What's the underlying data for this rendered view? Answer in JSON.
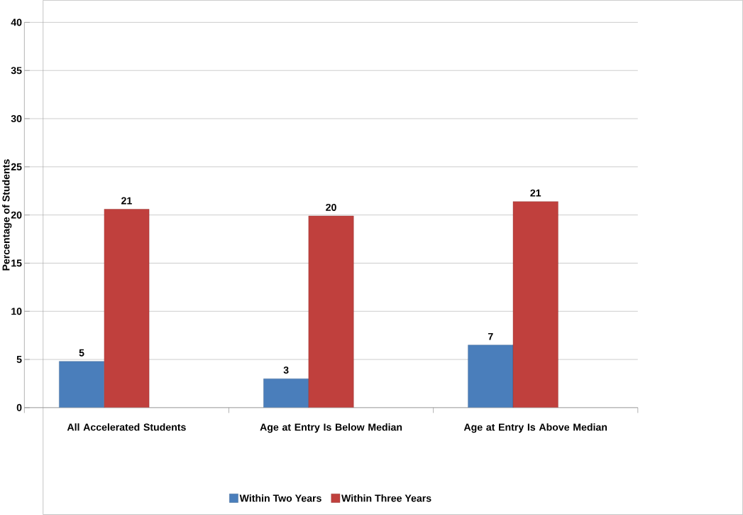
{
  "chart_data": {
    "type": "bar",
    "ylabel": "Percentage of Students",
    "categories": [
      "All Accelerated Students",
      "Age at Entry Is Below Median",
      "Age at Entry Is Above Median"
    ],
    "series": [
      {
        "name": "Within Two Years",
        "color": "#4a7ebb",
        "values": [
          4.8,
          3.0,
          6.5
        ],
        "value_labels": [
          "5",
          "3",
          "7"
        ]
      },
      {
        "name": "Within Three Years",
        "color": "#c0403d",
        "values": [
          20.6,
          19.9,
          21.4
        ],
        "value_labels": [
          "21",
          "20",
          "21"
        ]
      }
    ],
    "ylim": [
      0,
      40
    ],
    "yticks": [
      0,
      5,
      10,
      15,
      20,
      25,
      30,
      35,
      40
    ],
    "grid": "y",
    "legend": "bottom"
  }
}
